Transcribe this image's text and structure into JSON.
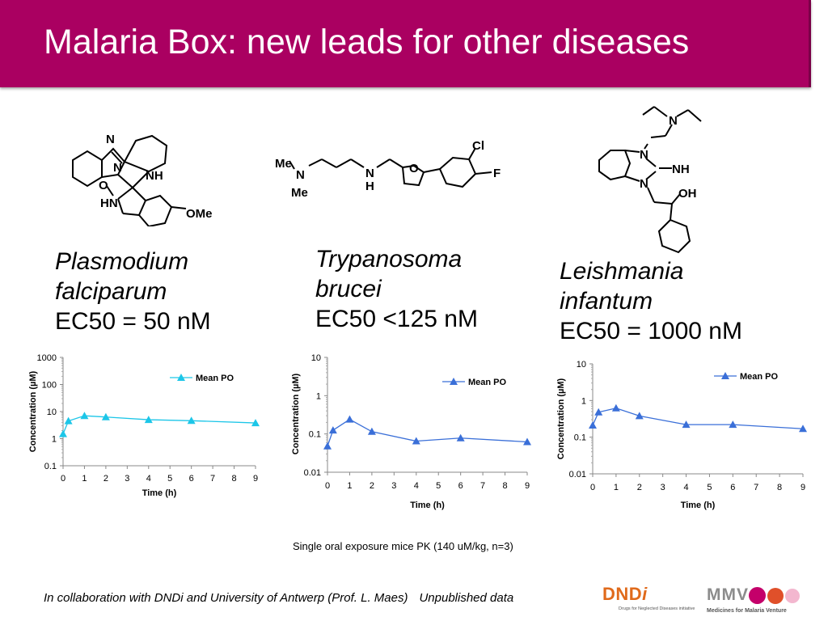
{
  "slide": {
    "title": "Malaria Box: new leads for other diseases",
    "caption": "Single oral exposure mice PK (140 uM/kg, n=3)",
    "footer_collab": "In collaboration with DNDi and University of Antwerp (Prof. L. Maes)",
    "footer_unpublished": "Unpublished data",
    "title_bar_color": "#aa0061"
  },
  "molecules": [
    {
      "labels": {
        "n_top": "N",
        "n_mid": "N",
        "nh": "NH",
        "o": "O",
        "hn": "HN",
        "ome": "OMe"
      }
    },
    {
      "labels": {
        "me_top": "Me",
        "n_left": "N",
        "me_bottom": "Me",
        "n_right": "N",
        "h": "H",
        "o": "O",
        "cl": "Cl",
        "f": "F"
      }
    },
    {
      "labels": {
        "n_amine": "N",
        "n_top": "N",
        "nh": "NH",
        "n_bottom": "N",
        "oh": "OH"
      }
    }
  ],
  "organisms": [
    {
      "name_line1": "Plasmodium",
      "name_line2": "falciparum",
      "ec50": "EC50 = 50 nM"
    },
    {
      "name_line1": "Trypanosoma",
      "name_line2": "brucei",
      "ec50": "EC50 <125 nM"
    },
    {
      "name_line1": "Leishmania",
      "name_line2": "infantum",
      "ec50": "EC50 = 1000 nM"
    }
  ],
  "chart_data": [
    {
      "type": "line",
      "xlabel": "Time (h)",
      "ylabel": "Concentration (µM)",
      "y_scale": "log",
      "ylim": [
        0.1,
        1000
      ],
      "xlim": [
        0,
        9
      ],
      "x_ticks": [
        "0",
        "1",
        "2",
        "3",
        "4",
        "5",
        "6",
        "7",
        "8",
        "9"
      ],
      "y_ticks": [
        "0.1",
        "1",
        "10",
        "100",
        "1000"
      ],
      "legend_position": "top-right",
      "series": [
        {
          "name": "Mean PO",
          "color": "#1cc6e8",
          "marker": "triangle",
          "x": [
            0,
            0.25,
            1,
            2,
            4,
            6,
            9
          ],
          "y": [
            1.5,
            4.5,
            7,
            6.3,
            5,
            4.6,
            3.8
          ]
        }
      ]
    },
    {
      "type": "line",
      "xlabel": "Time (h)",
      "ylabel": "Concentration (µM)",
      "y_scale": "log",
      "ylim": [
        0.01,
        10
      ],
      "xlim": [
        0,
        9
      ],
      "x_ticks": [
        "0",
        "1",
        "2",
        "3",
        "4",
        "5",
        "6",
        "7",
        "8",
        "9"
      ],
      "y_ticks": [
        "0.01",
        "0.1",
        "1",
        "10"
      ],
      "legend_position": "top-right",
      "series": [
        {
          "name": "Mean PO",
          "color": "#3a6fd8",
          "marker": "triangle",
          "x": [
            0,
            0.25,
            1,
            2,
            4,
            6,
            9
          ],
          "y": [
            0.048,
            0.125,
            0.24,
            0.115,
            0.065,
            0.078,
            0.062
          ]
        }
      ]
    },
    {
      "type": "line",
      "xlabel": "Time (h)",
      "ylabel": "Concentration (µM)",
      "y_scale": "log",
      "ylim": [
        0.01,
        10
      ],
      "xlim": [
        0,
        9
      ],
      "x_ticks": [
        "0",
        "1",
        "2",
        "3",
        "4",
        "5",
        "6",
        "7",
        "8",
        "9"
      ],
      "y_ticks": [
        "0.01",
        "0.1",
        "1",
        "10"
      ],
      "legend_position": "top-right",
      "series": [
        {
          "name": "Mean PO",
          "color": "#3a6fd8",
          "marker": "triangle",
          "x": [
            0,
            0.25,
            1,
            2,
            4,
            6,
            9
          ],
          "y": [
            0.21,
            0.48,
            0.62,
            0.38,
            0.22,
            0.22,
            0.17
          ]
        }
      ]
    }
  ],
  "logos": {
    "dndi": {
      "word_main": "DND",
      "word_i": "i",
      "tagline": "Drugs for Neglected Diseases initiative",
      "color": "#e06a1b"
    },
    "mmv": {
      "word": "MMV",
      "tagline": "Medicines for Malaria Venture",
      "dot_colors": [
        "#c4006a",
        "#e0502a",
        "#f3b7cf"
      ]
    }
  }
}
